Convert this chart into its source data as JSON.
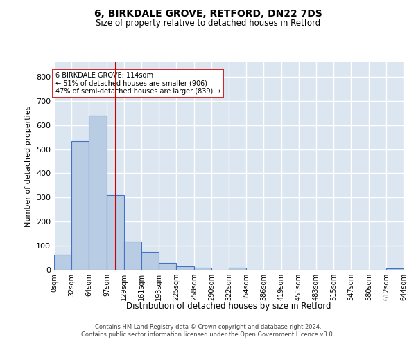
{
  "title1": "6, BIRKDALE GROVE, RETFORD, DN22 7DS",
  "title2": "Size of property relative to detached houses in Retford",
  "xlabel": "Distribution of detached houses by size in Retford",
  "ylabel": "Number of detached properties",
  "footer1": "Contains HM Land Registry data © Crown copyright and database right 2024.",
  "footer2": "Contains public sector information licensed under the Open Government Licence v3.0.",
  "annotation_line1": "6 BIRKDALE GROVE: 114sqm",
  "annotation_line2": "← 51% of detached houses are smaller (906)",
  "annotation_line3": "47% of semi-detached houses are larger (839) →",
  "bar_color": "#b8cce4",
  "bar_edge_color": "#4472c4",
  "background_color": "#dce6f1",
  "grid_color": "#ffffff",
  "redline_color": "#cc0000",
  "bin_edges": [
    0,
    32,
    64,
    97,
    129,
    161,
    193,
    225,
    258,
    290,
    322,
    354,
    386,
    419,
    451,
    483,
    515,
    547,
    580,
    612,
    644
  ],
  "bin_labels": [
    "0sqm",
    "32sqm",
    "64sqm",
    "97sqm",
    "129sqm",
    "161sqm",
    "193sqm",
    "225sqm",
    "258sqm",
    "290sqm",
    "322sqm",
    "354sqm",
    "386sqm",
    "419sqm",
    "451sqm",
    "483sqm",
    "515sqm",
    "547sqm",
    "580sqm",
    "612sqm",
    "644sqm"
  ],
  "bar_heights": [
    63,
    533,
    638,
    310,
    118,
    75,
    28,
    15,
    10,
    0,
    8,
    0,
    0,
    0,
    0,
    0,
    0,
    0,
    0,
    5
  ],
  "ylim": [
    0,
    860
  ],
  "yticks": [
    0,
    100,
    200,
    300,
    400,
    500,
    600,
    700,
    800
  ],
  "property_size": 114,
  "annotation_box_color": "#ffffff",
  "annotation_box_edge": "#cc0000",
  "fig_width": 6.0,
  "fig_height": 5.0,
  "dpi": 100
}
